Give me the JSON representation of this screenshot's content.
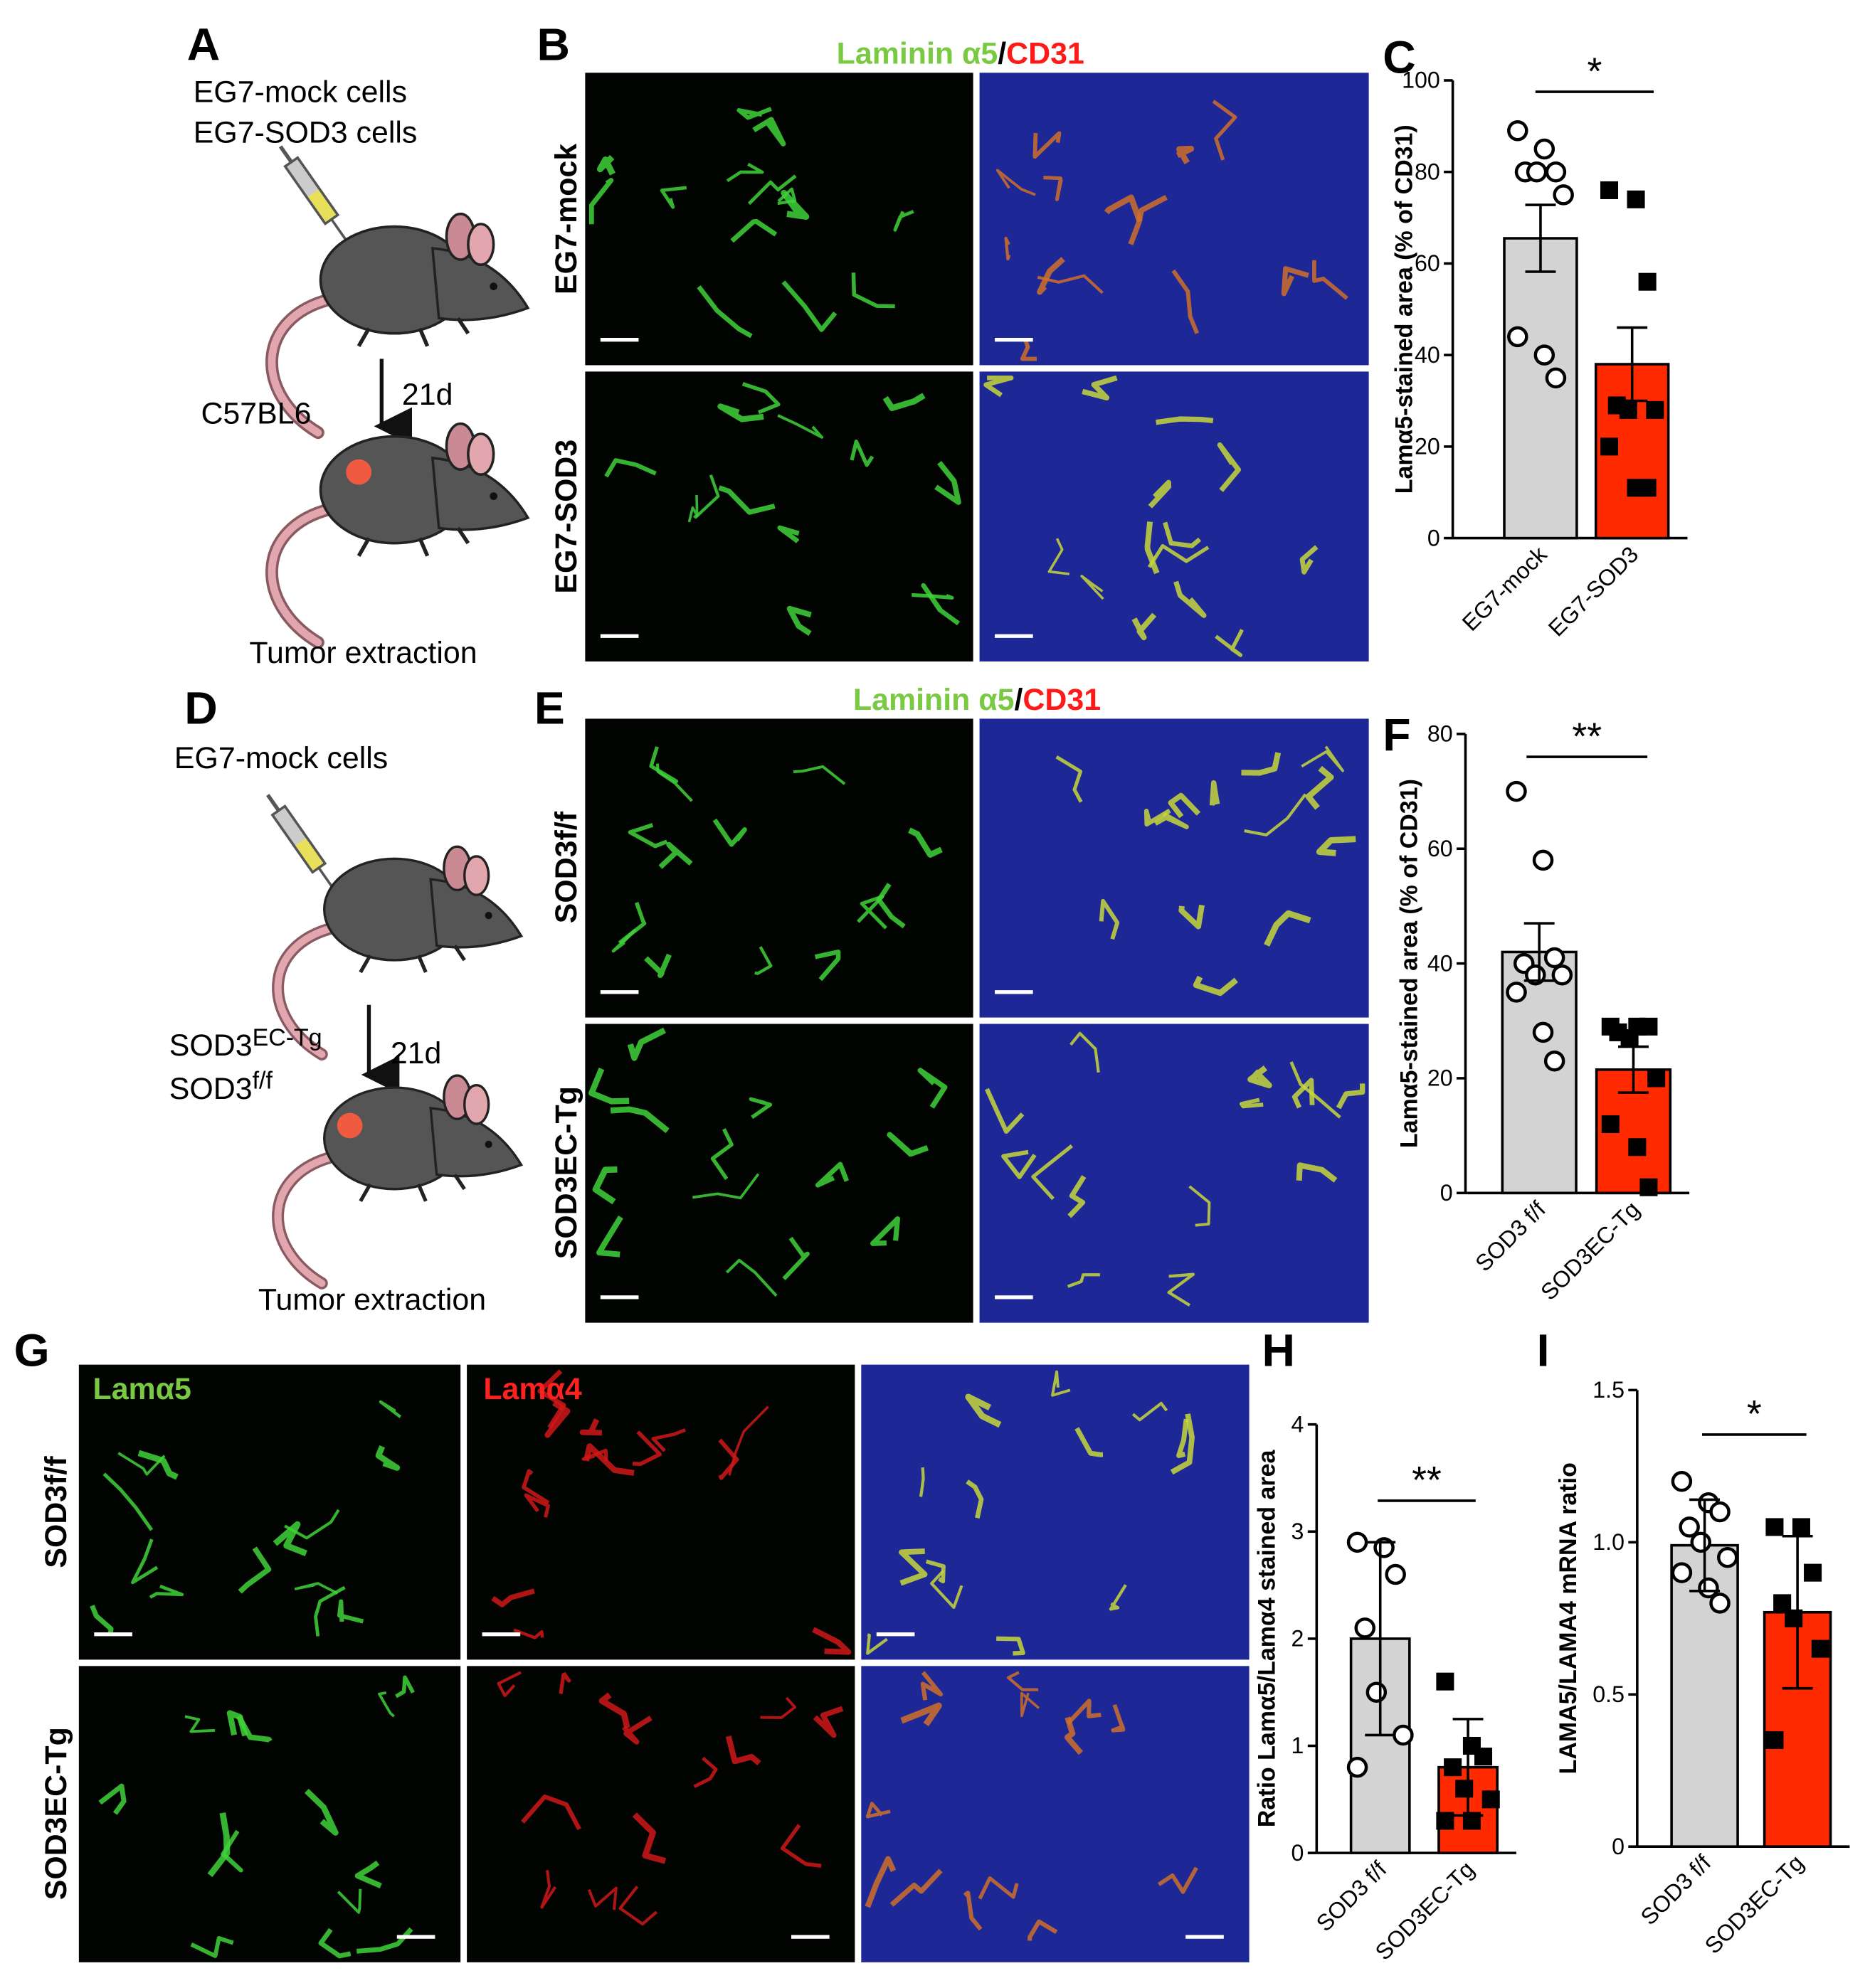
{
  "figure": {
    "panel_letters": [
      "A",
      "B",
      "D",
      "E",
      "G"
    ],
    "a": {
      "lines": [
        "EG7-mock cells",
        "EG7-SOD3 cells"
      ],
      "strain": "C57BL6",
      "time": "21d",
      "outcome": "Tumor extraction"
    },
    "b": {
      "title": [
        "Laminin α5",
        "/",
        "CD31"
      ],
      "rows": [
        "EG7-mock",
        "EG7-SOD3"
      ]
    },
    "d": {
      "cells": "EG7-mock cells",
      "groups": [
        {
          "base": "SOD3",
          "sup": "EC-Tg"
        },
        {
          "base": "SOD3",
          "sup": "f/f"
        }
      ],
      "time": "21d",
      "outcome": "Tumor extraction"
    },
    "e": {
      "title": [
        "Laminin α5",
        "/",
        "CD31"
      ],
      "rows": [
        "SOD3f/f",
        "SOD3EC-Tg"
      ]
    },
    "g": {
      "columns": [
        "Lamα5",
        "Lamα4"
      ],
      "rows": [
        "SOD3f/f",
        "SOD3EC-Tg"
      ]
    }
  },
  "chart_data": [
    {
      "type": "bar",
      "label": "C",
      "ylabel": "Lamα5-stained area (% of CD31)",
      "categories": [
        "EG7-mock",
        "EG7-SOD3"
      ],
      "values": [
        65.5,
        38
      ],
      "errors": [
        7.3,
        8
      ],
      "colors": [
        "#d3d3d3",
        "#ff2a00"
      ],
      "markers": [
        "circle",
        "square"
      ],
      "points": [
        [
          89,
          85,
          80,
          80,
          80,
          75,
          44,
          40,
          35
        ],
        [
          76,
          74,
          56,
          29,
          28,
          28,
          20,
          11,
          11
        ]
      ],
      "ylim": [
        0,
        100
      ],
      "yticks": [
        0,
        20,
        40,
        60,
        80,
        100
      ],
      "significance": "*"
    },
    {
      "type": "bar",
      "label": "F",
      "ylabel": "Lamα5-stained area (% of CD31)",
      "categories": [
        "SOD3 f/f",
        "SOD3EC-Tg"
      ],
      "values": [
        42,
        21.5
      ],
      "errors": [
        5,
        4
      ],
      "colors": [
        "#d3d3d3",
        "#ff2a00"
      ],
      "markers": [
        "circle",
        "square"
      ],
      "points": [
        [
          70,
          58,
          41,
          40,
          38,
          38,
          35,
          28,
          23
        ],
        [
          29,
          29,
          29,
          28,
          27,
          20,
          12,
          8,
          1
        ]
      ],
      "ylim": [
        0,
        80
      ],
      "yticks": [
        0,
        20,
        40,
        60,
        80
      ],
      "significance": "**"
    },
    {
      "type": "bar",
      "label": "H",
      "ylabel": "Ratio Lamα5/Lamα4 stained area",
      "categories": [
        "SOD3 f/f",
        "SOD3EC-Tg"
      ],
      "values": [
        2.0,
        0.8
      ],
      "errors": [
        0.9,
        0.45
      ],
      "colors": [
        "#d3d3d3",
        "#ff2a00"
      ],
      "markers": [
        "circle",
        "square"
      ],
      "points": [
        [
          2.9,
          2.85,
          2.6,
          2.1,
          1.5,
          1.1,
          0.8
        ],
        [
          1.6,
          1.0,
          0.9,
          0.8,
          0.6,
          0.5,
          0.3,
          0.3
        ]
      ],
      "ylim": [
        0,
        4
      ],
      "yticks": [
        0,
        1,
        2,
        3,
        4
      ],
      "significance": "**"
    },
    {
      "type": "bar",
      "label": "I",
      "ylabel": "LAMA5/LAMA4 mRNA ratio",
      "categories": [
        "SOD3 f/f",
        "SOD3EC-Tg"
      ],
      "values": [
        0.99,
        0.77
      ],
      "errors": [
        0.15,
        0.25
      ],
      "colors": [
        "#d3d3d3",
        "#ff2a00"
      ],
      "markers": [
        "circle",
        "square"
      ],
      "points": [
        [
          1.2,
          1.13,
          1.1,
          1.05,
          1.0,
          0.95,
          0.9,
          0.85,
          0.8
        ],
        [
          1.05,
          1.05,
          0.9,
          0.8,
          0.75,
          0.65,
          0.35
        ]
      ],
      "ylim": [
        0,
        1.5
      ],
      "yticks": [
        0,
        0.5,
        {
          "value": 1,
          "label": "1.0"
        },
        1.5
      ],
      "significance": "*"
    }
  ]
}
